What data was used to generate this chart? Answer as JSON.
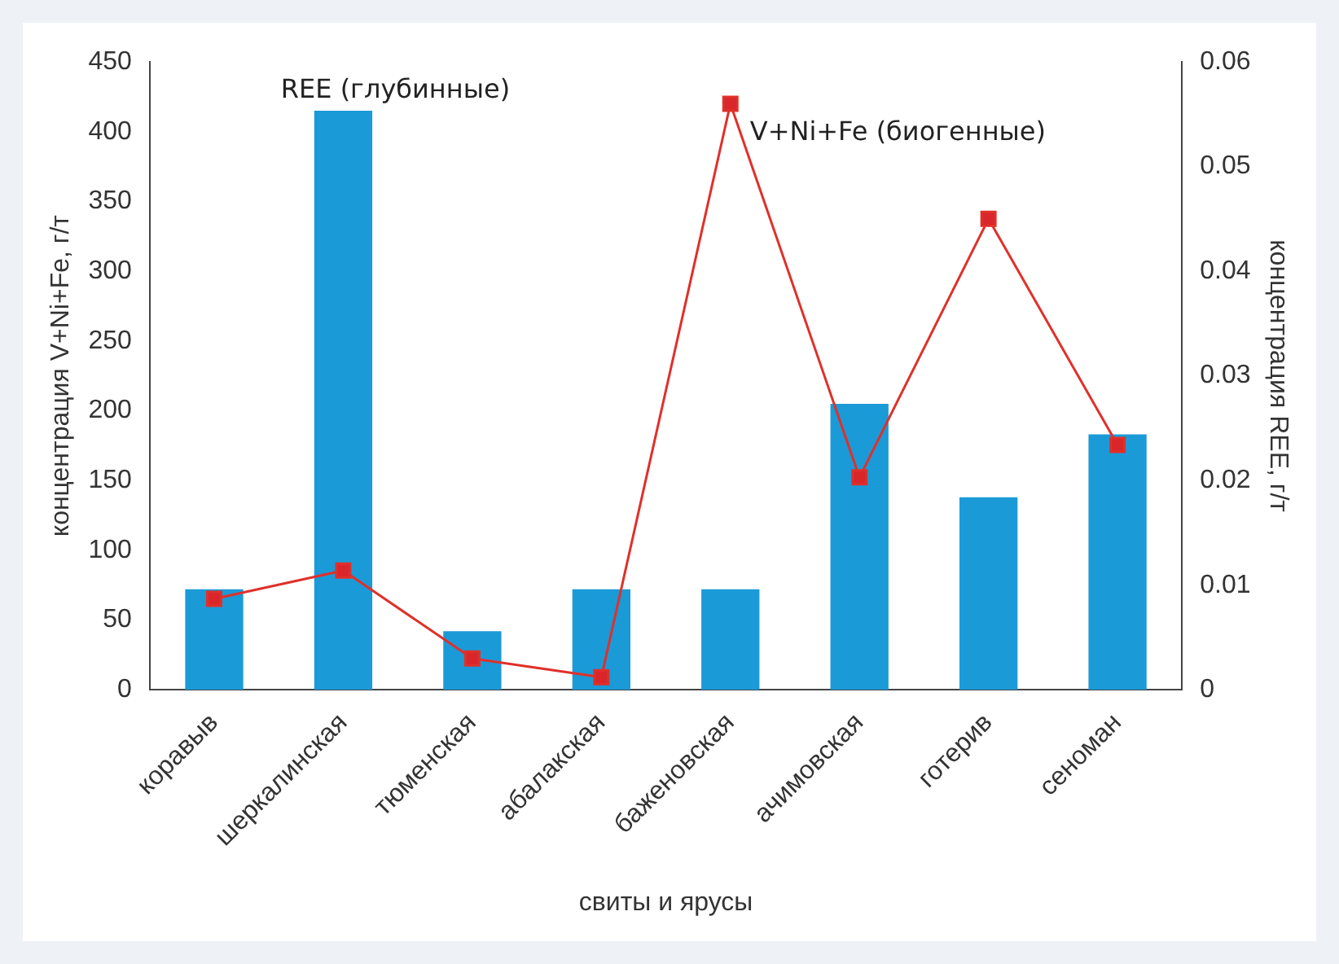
{
  "chart_data": {
    "type": "bar",
    "xlabel": "свиты и ярусы",
    "ylabel": "концентрация V+Ni+Fe, г/т",
    "y2label": "концентрация REE, г/т",
    "categories": [
      "коравыв",
      "шеркалинская",
      "тюменская",
      "абалакская",
      "баженовская",
      "ачимовская",
      "готерив",
      "сеноман"
    ],
    "series": [
      {
        "name": "REE (глубинные)",
        "color": "#1b9ad8",
        "values": [
          72,
          415,
          42,
          72,
          72,
          205,
          138,
          183
        ]
      },
      {
        "name": "V+Ni+Fe (биогенные)",
        "type": "line",
        "axis": "y2",
        "color": "#e0302a",
        "marker": "square",
        "values": [
          0.0087,
          0.0114,
          0.003,
          0.0012,
          0.056,
          0.0203,
          0.045,
          0.0234
        ]
      }
    ],
    "ylim": [
      0,
      450
    ],
    "yticks": [
      0,
      50,
      100,
      150,
      200,
      250,
      300,
      350,
      400,
      450
    ],
    "y2lim": [
      0,
      0.06
    ],
    "y2ticks": [
      {
        "value": 0,
        "label": "0"
      },
      0.01,
      0.02,
      0.03,
      0.04,
      0.05,
      0.06
    ],
    "grid": false,
    "legend": false
  }
}
